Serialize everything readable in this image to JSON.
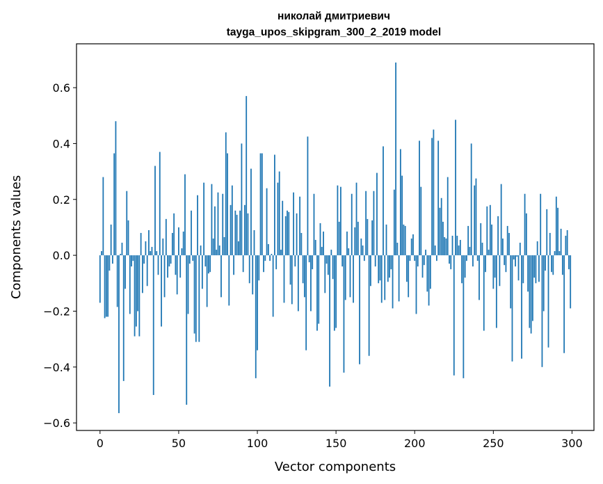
{
  "chart_data": {
    "type": "bar",
    "title_line1": "николай дмитриевич",
    "title_line2": "tayga_upos_skipgram_300_2_2019 model",
    "xlabel": "Vector components",
    "ylabel": "Components values",
    "xlim": [
      -14.95,
      313.95
    ],
    "ylim": [
      -0.627,
      0.757
    ],
    "x_ticks": [
      0,
      50,
      100,
      150,
      200,
      250,
      300
    ],
    "x_tick_labels": [
      "0",
      "50",
      "100",
      "150",
      "200",
      "250",
      "300"
    ],
    "y_ticks": [
      -0.6,
      -0.4,
      -0.2,
      0.0,
      0.2,
      0.4,
      0.6
    ],
    "y_tick_labels": [
      "−0.6",
      "−0.4",
      "−0.2",
      "0.0",
      "0.2",
      "0.4",
      "0.6"
    ],
    "grid": false,
    "bar_color": "#1f77b4",
    "values": [
      -0.17,
      0.015,
      0.28,
      -0.225,
      -0.22,
      -0.22,
      -0.055,
      0.11,
      -0.03,
      0.365,
      0.48,
      -0.185,
      -0.565,
      0.005,
      0.045,
      -0.45,
      -0.12,
      0.23,
      0.125,
      -0.21,
      -0.04,
      -0.02,
      -0.29,
      -0.255,
      -0.2,
      -0.29,
      0.08,
      -0.135,
      -0.03,
      0.05,
      -0.11,
      0.09,
      0.015,
      0.03,
      -0.5,
      0.32,
      0.015,
      -0.07,
      0.37,
      -0.255,
      0.06,
      -0.15,
      0.13,
      -0.08,
      -0.04,
      -0.03,
      0.08,
      0.15,
      -0.07,
      -0.14,
      0.1,
      -0.08,
      0.025,
      0.085,
      0.29,
      -0.535,
      -0.21,
      -0.03,
      0.16,
      -0.02,
      -0.28,
      -0.31,
      0.215,
      -0.31,
      0.035,
      -0.12,
      0.26,
      -0.04,
      -0.185,
      -0.065,
      -0.06,
      0.255,
      0.06,
      0.175,
      0.02,
      0.225,
      0.035,
      -0.15,
      0.22,
      0.065,
      0.44,
      0.365,
      -0.18,
      0.18,
      0.25,
      -0.07,
      0.16,
      0.145,
      0.05,
      0.16,
      0.4,
      -0.06,
      0.18,
      0.57,
      0.15,
      -0.1,
      0.31,
      -0.14,
      0.09,
      -0.44,
      -0.34,
      -0.09,
      0.365,
      0.365,
      -0.06,
      -0.02,
      0.24,
      0.04,
      -0.02,
      0.005,
      -0.22,
      0.36,
      -0.05,
      0.26,
      0.3,
      0.02,
      0.195,
      -0.17,
      0.14,
      0.16,
      0.155,
      -0.105,
      -0.175,
      0.225,
      -0.04,
      0.15,
      -0.2,
      0.21,
      0.08,
      -0.1,
      -0.15,
      -0.34,
      0.425,
      -0.025,
      -0.2,
      -0.05,
      0.22,
      0.055,
      -0.27,
      -0.245,
      0.115,
      0.03,
      0.085,
      -0.135,
      -0.03,
      -0.07,
      -0.47,
      0.02,
      -0.085,
      -0.27,
      -0.26,
      0.25,
      0.12,
      0.245,
      -0.04,
      -0.42,
      -0.16,
      0.085,
      0.025,
      -0.15,
      0.22,
      -0.17,
      0.1,
      0.26,
      0.12,
      -0.39,
      0.06,
      0.035,
      -0.02,
      0.23,
      0.13,
      -0.36,
      -0.11,
      0.125,
      0.23,
      -0.04,
      0.295,
      -0.1,
      -0.09,
      -0.17,
      0.39,
      -0.16,
      0.11,
      -0.095,
      -0.08,
      -0.05,
      -0.19,
      0.235,
      0.69,
      0.045,
      -0.165,
      0.38,
      0.285,
      0.11,
      0.105,
      -0.095,
      -0.15,
      -0.02,
      0.06,
      0.075,
      -0.02,
      -0.21,
      -0.04,
      0.41,
      0.245,
      -0.08,
      -0.035,
      0.02,
      -0.13,
      -0.18,
      -0.12,
      0.42,
      0.45,
      0.035,
      -0.02,
      0.41,
      0.17,
      0.205,
      0.12,
      0.065,
      0.06,
      0.28,
      -0.03,
      -0.05,
      0.07,
      -0.43,
      0.485,
      0.07,
      0.035,
      0.055,
      -0.1,
      -0.44,
      -0.08,
      -0.02,
      0.105,
      0.03,
      0.4,
      -0.04,
      0.25,
      0.275,
      -0.02,
      -0.16,
      0.115,
      0.045,
      -0.27,
      -0.06,
      0.175,
      0.02,
      0.18,
      0.11,
      -0.12,
      -0.08,
      -0.26,
      0.14,
      -0.11,
      0.255,
      0.06,
      -0.035,
      -0.06,
      0.105,
      0.08,
      -0.19,
      -0.38,
      -0.015,
      -0.04,
      -0.005,
      -0.09,
      0.045,
      -0.37,
      -0.1,
      0.22,
      0.15,
      -0.13,
      -0.26,
      -0.28,
      -0.235,
      -0.08,
      -0.1,
      0.05,
      -0.095,
      0.22,
      -0.4,
      -0.2,
      -0.055,
      0.165,
      -0.33,
      0.08,
      -0.06,
      -0.07,
      0.015,
      0.21,
      0.17,
      0.015,
      0.095,
      -0.07,
      -0.35,
      0.07,
      0.09,
      -0.05,
      -0.19
    ]
  }
}
